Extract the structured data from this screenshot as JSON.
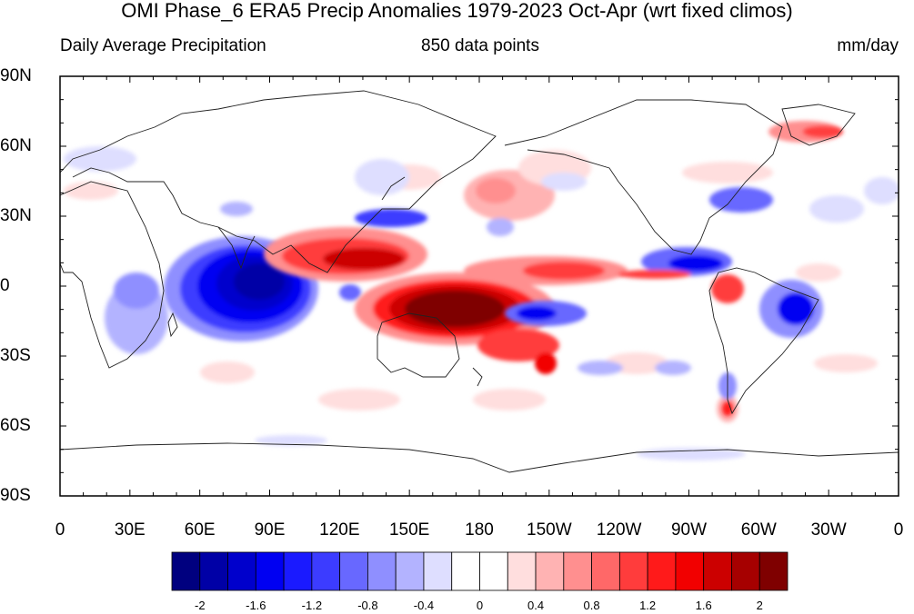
{
  "title": "OMI Phase_6 ERA5 Precip Anomalies 1979-2023 Oct-Apr (wrt fixed climos)",
  "subtitle_left": "Daily Average Precipitation",
  "subtitle_center": "850 data points",
  "subtitle_right": "mm/day",
  "lat_labels": [
    "90N",
    "60N",
    "30N",
    "0",
    "30S",
    "60S",
    "90S"
  ],
  "lon_labels": [
    "0",
    "30E",
    "60E",
    "90E",
    "120E",
    "150E",
    "180",
    "150W",
    "120W",
    "90W",
    "60W",
    "30W",
    "0"
  ],
  "colorbar": {
    "colors": [
      "#00007f",
      "#0000a6",
      "#0000cc",
      "#0000f2",
      "#1a1aff",
      "#3c3cff",
      "#6868ff",
      "#8f8fff",
      "#b3b3ff",
      "#dedeff",
      "#ffffff",
      "#ffffff",
      "#ffdede",
      "#ffb3b3",
      "#ff8f8f",
      "#ff6868",
      "#ff3c3c",
      "#ff1a1a",
      "#f20000",
      "#cc0000",
      "#a60000",
      "#7f0000"
    ],
    "tick_labels": [
      "-2",
      "-1.6",
      "-1.2",
      "-0.8",
      "-0.4",
      "0",
      "0.4",
      "0.8",
      "1.2",
      "1.6",
      "2"
    ]
  },
  "colors": {
    "dark_red": "#7f0000",
    "red": "#e00000",
    "blue": "#0000e0",
    "dark_blue": "#00009a",
    "coast": "#222222"
  }
}
